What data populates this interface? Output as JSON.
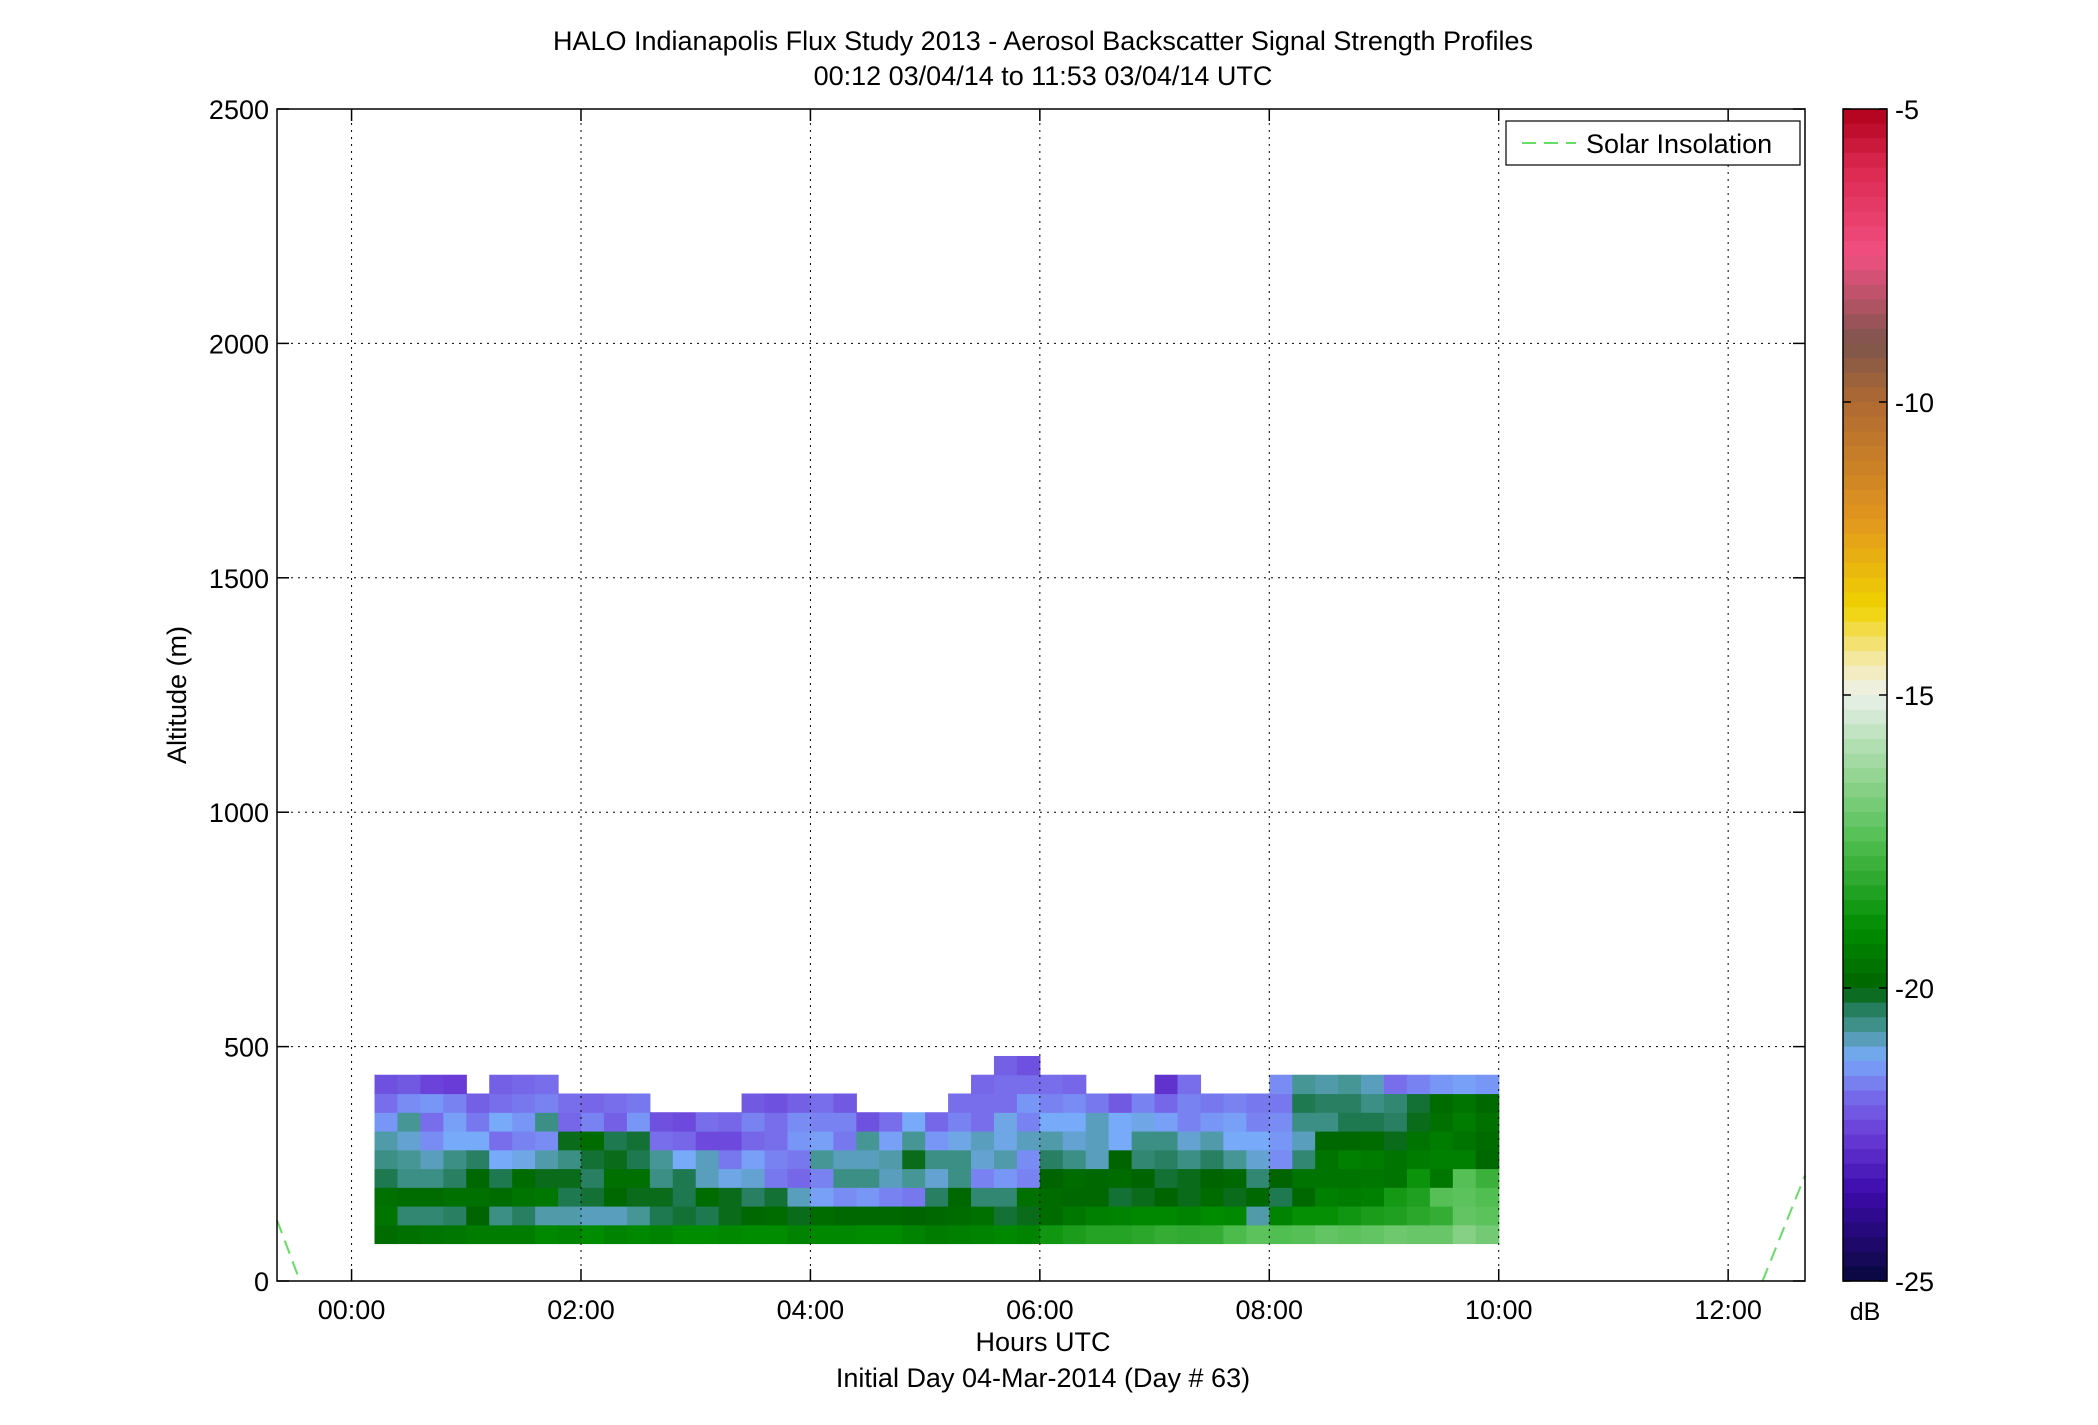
{
  "chart_data": {
    "type": "heatmap",
    "title": "HALO Indianapolis Flux Study 2013 - Aerosol Backscatter Signal Strength Profiles",
    "subtitle": "00:12 03/04/14 to 11:53 03/04/14  UTC",
    "xlabel": "Hours UTC",
    "xlabel2": "Initial Day 04-Mar-2014 (Day # 63)",
    "ylabel": "Altitude (m)",
    "xlim": [
      -0.65,
      12.67
    ],
    "ylim": [
      0,
      2500
    ],
    "grid": true,
    "x_ticks": [
      {
        "value": 0,
        "label": "00:00"
      },
      {
        "value": 2,
        "label": "02:00"
      },
      {
        "value": 4,
        "label": "04:00"
      },
      {
        "value": 6,
        "label": "06:00"
      },
      {
        "value": 8,
        "label": "08:00"
      },
      {
        "value": 10,
        "label": "10:00"
      },
      {
        "value": 12,
        "label": "12:00"
      }
    ],
    "y_ticks": [
      {
        "value": 0,
        "label": "0"
      },
      {
        "value": 500,
        "label": "500"
      },
      {
        "value": 1000,
        "label": "1000"
      },
      {
        "value": 1500,
        "label": "1500"
      },
      {
        "value": 2000,
        "label": "2000"
      },
      {
        "value": 2500,
        "label": "2500"
      }
    ],
    "colorbar": {
      "label": "dB",
      "range": [
        -25,
        -5
      ],
      "ticks": [
        {
          "value": -5,
          "label": "-5"
        },
        {
          "value": -10,
          "label": "-10"
        },
        {
          "value": -15,
          "label": "-15"
        },
        {
          "value": -20,
          "label": "-20"
        },
        {
          "value": -25,
          "label": "-25"
        }
      ]
    },
    "legend": {
      "position": "top-right",
      "entries": [
        {
          "name": "Solar Insolation",
          "color": "#66dd66",
          "style": "dashed"
        }
      ]
    },
    "heatmap": {
      "x_start": 0.2,
      "x_step": 0.2,
      "y_start": 80,
      "y_step": 40,
      "columns": [
        [
          -19.8,
          -19.6,
          -19.7,
          -20.3,
          -20.6,
          -20.8,
          -21.4,
          -21.8,
          -22.2
        ],
        [
          -19.7,
          -20.5,
          -19.8,
          -20.6,
          -20.7,
          -21.0,
          -20.7,
          -21.5,
          -22.1
        ],
        [
          -19.6,
          -20.5,
          -19.8,
          -20.6,
          -20.9,
          -21.5,
          -21.8,
          -21.4,
          -22.4
        ],
        [
          -19.5,
          -20.4,
          -19.7,
          -20.4,
          -20.6,
          -21.2,
          -21.3,
          -21.6,
          -22.5
        ],
        [
          -19.4,
          -20.0,
          -19.7,
          -19.9,
          -20.4,
          -21.2,
          -21.7,
          -22.0
        ],
        [
          -19.4,
          -20.6,
          -19.8,
          -20.3,
          -21.2,
          -21.8,
          -21.2,
          -21.8,
          -22.0
        ],
        [
          -19.4,
          -20.4,
          -19.6,
          -19.8,
          -21.1,
          -21.6,
          -21.4,
          -21.7,
          -21.9
        ],
        [
          -19.1,
          -20.8,
          -19.5,
          -20.1,
          -20.8,
          -21.5,
          -20.6,
          -21.6,
          -21.8
        ],
        [
          -19.2,
          -20.8,
          -20.3,
          -20.1,
          -20.6,
          -20.1,
          -21.9,
          -21.8
        ],
        [
          -19.0,
          -20.9,
          -20.2,
          -20.4,
          -20.2,
          -19.8,
          -21.6,
          -21.9
        ],
        [
          -19.2,
          -20.9,
          -19.9,
          -19.7,
          -20.1,
          -20.3,
          -22.0,
          -21.8
        ],
        [
          -19.1,
          -20.7,
          -20.1,
          -19.7,
          -20.3,
          -20.2,
          -21.4,
          -21.7
        ],
        [
          -19.2,
          -20.3,
          -20.1,
          -20.6,
          -20.7,
          -21.8,
          -22.2
        ],
        [
          -19.0,
          -20.2,
          -20.3,
          -20.3,
          -21.2,
          -21.9,
          -22.3
        ],
        [
          -19.0,
          -20.3,
          -19.8,
          -20.9,
          -20.9,
          -22.3,
          -21.8
        ],
        [
          -19.1,
          -20.1,
          -20.1,
          -21.1,
          -21.7,
          -22.3,
          -21.9
        ],
        [
          -19.0,
          -19.9,
          -20.4,
          -21.0,
          -21.3,
          -21.9,
          -21.6,
          -22.1
        ],
        [
          -19.0,
          -19.8,
          -20.2,
          -21.7,
          -21.6,
          -21.8,
          -21.8,
          -22.2
        ],
        [
          -19.2,
          -20.1,
          -20.9,
          -21.9,
          -21.7,
          -21.4,
          -21.5,
          -22.0
        ],
        [
          -19.1,
          -19.8,
          -21.3,
          -21.6,
          -20.7,
          -21.3,
          -21.6,
          -21.8
        ],
        [
          -19.1,
          -19.9,
          -21.5,
          -20.6,
          -20.9,
          -21.7,
          -21.6,
          -22.1
        ],
        [
          -19.0,
          -19.9,
          -21.4,
          -20.6,
          -20.9,
          -20.7,
          -22.2
        ],
        [
          -19.0,
          -19.9,
          -21.6,
          -20.9,
          -20.8,
          -21.3,
          -21.8
        ],
        [
          -19.2,
          -20.0,
          -21.7,
          -20.7,
          -20.1,
          -20.7,
          -21.2
        ],
        [
          -19.4,
          -19.9,
          -20.4,
          -21.0,
          -20.6,
          -21.4,
          -21.9
        ],
        [
          -19.3,
          -19.8,
          -19.9,
          -20.6,
          -20.6,
          -21.1,
          -21.6,
          -21.8
        ],
        [
          -19.2,
          -19.7,
          -20.5,
          -21.6,
          -21.0,
          -20.9,
          -21.8,
          -21.8,
          -21.9
        ],
        [
          -19.1,
          -20.2,
          -20.5,
          -21.4,
          -20.8,
          -21.1,
          -21.1,
          -21.8,
          -21.8,
          -22.0
        ],
        [
          -19.2,
          -20.1,
          -19.7,
          -21.6,
          -21.5,
          -20.9,
          -21.6,
          -21.4,
          -21.8,
          -22.2
        ],
        [
          -18.7,
          -19.8,
          -19.8,
          -20.0,
          -20.4,
          -20.8,
          -21.2,
          -21.6,
          -21.8
        ],
        [
          -18.5,
          -19.5,
          -19.9,
          -19.8,
          -20.6,
          -21.0,
          -21.2,
          -21.5,
          -21.9
        ],
        [
          -18.3,
          -19.3,
          -19.9,
          -19.9,
          -20.9,
          -20.9,
          -20.9,
          -21.7
        ],
        [
          -18.3,
          -19.2,
          -20.2,
          -19.8,
          -20.0,
          -21.2,
          -21.2,
          -22.1
        ],
        [
          -18.2,
          -19.1,
          -20.1,
          -20.0,
          -20.5,
          -20.6,
          -21.1,
          -21.6
        ],
        [
          -18.0,
          -19.1,
          -20.0,
          -20.2,
          -20.4,
          -20.6,
          -21.3,
          -21.9,
          -22.7
        ],
        [
          -18.1,
          -19.2,
          -20.1,
          -20.1,
          -20.6,
          -21.0,
          -21.6,
          -21.6,
          -21.8
        ],
        [
          -18.0,
          -19.0,
          -19.8,
          -20.0,
          -20.4,
          -20.8,
          -21.4,
          -21.7
        ],
        [
          -17.6,
          -19.1,
          -20.1,
          -19.9,
          -20.7,
          -21.2,
          -21.3,
          -21.6
        ],
        [
          -17.3,
          -20.8,
          -19.9,
          -20.5,
          -21.0,
          -21.2,
          -21.6,
          -21.7
        ],
        [
          -17.5,
          -19.2,
          -20.3,
          -20.0,
          -21.5,
          -21.4,
          -21.5,
          -21.7,
          -21.5
        ],
        [
          -17.4,
          -18.9,
          -19.9,
          -19.6,
          -20.5,
          -20.9,
          -20.6,
          -20.3,
          -20.7
        ],
        [
          -17.2,
          -18.9,
          -19.3,
          -19.6,
          -19.6,
          -19.9,
          -20.6,
          -20.4,
          -20.8
        ],
        [
          -17.3,
          -18.7,
          -19.4,
          -19.6,
          -19.3,
          -19.9,
          -20.3,
          -20.4,
          -20.7
        ],
        [
          -17.2,
          -18.5,
          -19.3,
          -19.5,
          -19.4,
          -19.8,
          -20.3,
          -20.6,
          -20.9
        ],
        [
          -17.0,
          -18.4,
          -18.6,
          -19.6,
          -19.6,
          -20.1,
          -20.4,
          -20.5,
          -21.8
        ],
        [
          -17.1,
          -18.2,
          -18.4,
          -18.8,
          -19.4,
          -19.6,
          -20.1,
          -20.2,
          -21.6
        ],
        [
          -17.1,
          -18.0,
          -17.4,
          -19.5,
          -19.3,
          -19.4,
          -19.7,
          -19.8,
          -21.4
        ],
        [
          -16.6,
          -17.2,
          -17.3,
          -17.4,
          -19.3,
          -19.6,
          -19.4,
          -19.6,
          -21.3
        ],
        [
          -16.9,
          -17.3,
          -17.5,
          -17.9,
          -19.9,
          -19.8,
          -19.7,
          -19.9,
          -21.4
        ]
      ]
    },
    "solar_insolation": {
      "left_segment": [
        [
          -0.65,
          130
        ],
        [
          -0.45,
          0
        ]
      ],
      "right_segment": [
        [
          12.3,
          0
        ],
        [
          12.67,
          225
        ]
      ]
    }
  }
}
